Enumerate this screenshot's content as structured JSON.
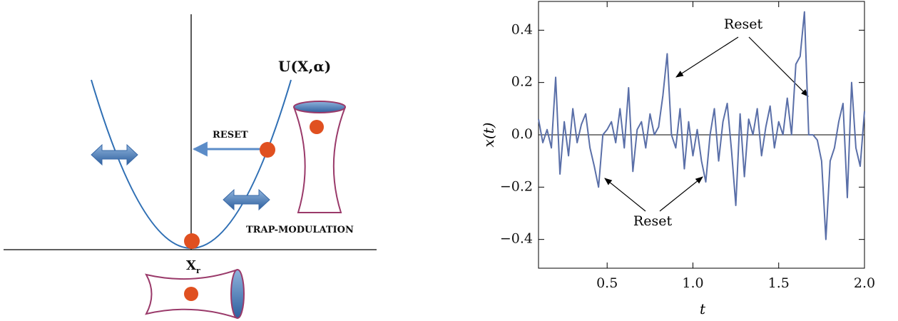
{
  "diagram": {
    "potential_label": "U(X,α)",
    "reset_label": "RESET",
    "modulation_label": "TRAP-MODULATION",
    "position_label": "X",
    "position_subscript": "r"
  },
  "chart_data": {
    "type": "line",
    "x_label": "t",
    "y_label": "x(t)",
    "annotations": [
      "Reset",
      "Reset"
    ],
    "x": [
      0.1,
      0.125,
      0.15,
      0.175,
      0.2,
      0.225,
      0.25,
      0.275,
      0.3,
      0.325,
      0.35,
      0.375,
      0.4,
      0.425,
      0.45,
      0.475,
      0.5,
      0.525,
      0.55,
      0.575,
      0.6,
      0.625,
      0.65,
      0.675,
      0.7,
      0.725,
      0.75,
      0.775,
      0.8,
      0.825,
      0.85,
      0.875,
      0.9,
      0.925,
      0.95,
      0.975,
      1.0,
      1.025,
      1.05,
      1.075,
      1.1,
      1.125,
      1.15,
      1.175,
      1.2,
      1.225,
      1.25,
      1.275,
      1.3,
      1.325,
      1.35,
      1.375,
      1.4,
      1.425,
      1.45,
      1.475,
      1.5,
      1.525,
      1.55,
      1.575,
      1.6,
      1.625,
      1.65,
      1.675,
      1.7,
      1.725,
      1.75,
      1.775,
      1.8,
      1.825,
      1.85,
      1.875,
      1.9,
      1.925,
      1.95,
      1.975,
      2.0
    ],
    "series": [
      {
        "color": "#5a6fa8",
        "values": [
          0.06,
          -0.03,
          0.02,
          -0.05,
          0.22,
          -0.15,
          0.05,
          -0.08,
          0.1,
          -0.03,
          0.04,
          0.08,
          -0.05,
          -0.12,
          -0.2,
          0.0,
          0.02,
          0.05,
          -0.03,
          0.1,
          -0.05,
          0.18,
          -0.14,
          0.02,
          0.05,
          -0.05,
          0.08,
          0.0,
          0.03,
          0.15,
          0.31,
          0.0,
          -0.05,
          0.1,
          -0.13,
          0.05,
          -0.08,
          0.02,
          -0.1,
          -0.18,
          0.0,
          0.1,
          -0.1,
          0.05,
          0.12,
          -0.06,
          -0.27,
          0.08,
          -0.16,
          0.06,
          0.0,
          0.1,
          -0.08,
          0.03,
          0.11,
          -0.05,
          0.05,
          0.0,
          0.14,
          0.0,
          0.27,
          0.3,
          0.47,
          0.0,
          0.0,
          -0.02,
          -0.1,
          -0.4,
          -0.1,
          -0.05,
          0.05,
          0.12,
          -0.24,
          0.2,
          -0.05,
          -0.12,
          0.09
        ]
      }
    ],
    "xlim": [
      0.1,
      2.0
    ],
    "ylim": [
      -0.51,
      0.51
    ],
    "xticks": [
      0.5,
      {
        "value": 1,
        "label": "1.0"
      },
      1.5,
      {
        "value": 2,
        "label": "2.0"
      }
    ],
    "yticks": [
      {
        "value": -0.4,
        "label": "−0.4"
      },
      {
        "value": -0.2,
        "label": "−0.2"
      },
      {
        "value": 0,
        "label": "0.0"
      },
      0.2,
      0.4
    ]
  }
}
